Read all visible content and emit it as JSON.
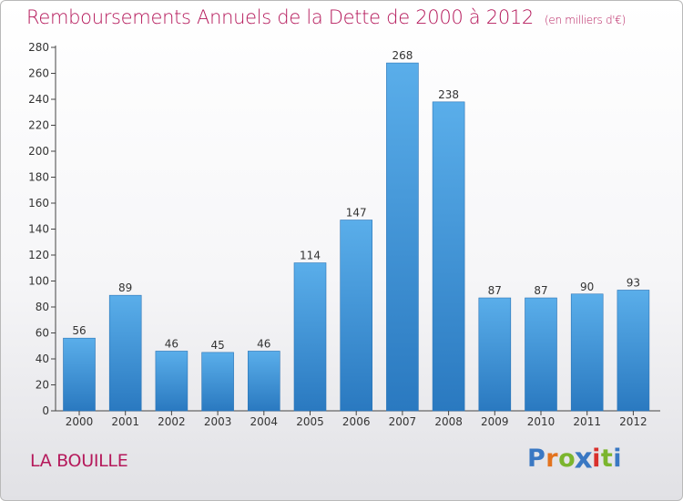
{
  "header": {
    "title": "Remboursements Annuels de la Dette de 2000 à 2012",
    "unit": "(en milliers d'€)"
  },
  "footer": {
    "commune": "LA BOUILLE",
    "brand": "Proxiti",
    "brand_colors": [
      "#3a78c3",
      "#e3731f",
      "#7bb52e",
      "#3a78c3",
      "#d9302c",
      "#7bb52e",
      "#3a78c3"
    ]
  },
  "chart_data": {
    "type": "bar",
    "categories": [
      "2000",
      "2001",
      "2002",
      "2003",
      "2004",
      "2005",
      "2006",
      "2007",
      "2008",
      "2009",
      "2010",
      "2011",
      "2012"
    ],
    "values": [
      56,
      89,
      46,
      45,
      46,
      114,
      147,
      268,
      238,
      87,
      87,
      90,
      93
    ],
    "title": "Remboursements Annuels de la Dette de 2000 à 2012",
    "ylim": [
      0,
      280
    ],
    "yticks": [
      0,
      20,
      40,
      60,
      80,
      100,
      120,
      140,
      160,
      180,
      200,
      220,
      240,
      260,
      280
    ],
    "grid": false,
    "bar_color": "#4a9fe0"
  }
}
